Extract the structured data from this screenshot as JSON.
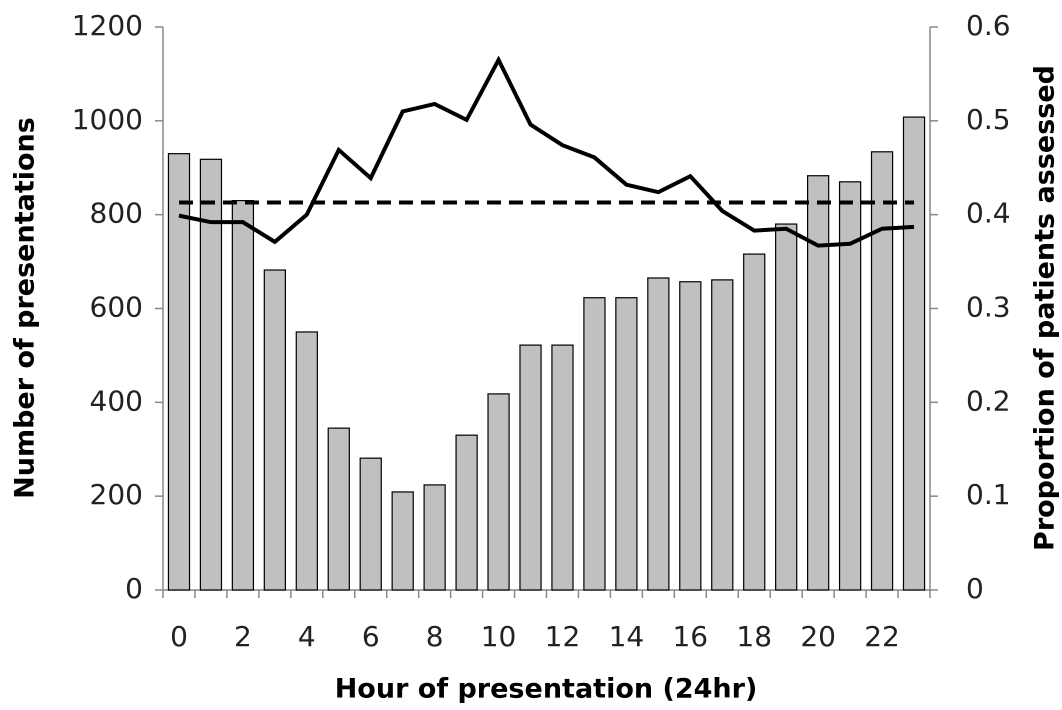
{
  "chart_data": {
    "type": "bar-line",
    "x_label": "Hour of presentation (24hr)",
    "y_label": "Number of presentations",
    "y2_label": "Proportion of patients assessed",
    "categories": [
      0,
      null,
      2,
      null,
      4,
      null,
      6,
      null,
      8,
      null,
      10,
      null,
      12,
      null,
      14,
      null,
      16,
      null,
      18,
      null,
      20,
      null,
      22,
      null
    ],
    "ylim": [
      0,
      1200
    ],
    "yticks": [
      0,
      200,
      400,
      600,
      800,
      1000,
      1200
    ],
    "y2lim": [
      0,
      0.6
    ],
    "y2ticks": [
      0,
      0.1,
      0.2,
      0.3,
      0.4,
      0.5,
      0.6
    ],
    "series": [
      {
        "type": "bar",
        "color": "#c0c0c0",
        "values": [
          930,
          918,
          830,
          682,
          550,
          345,
          281,
          209,
          224,
          330,
          418,
          522,
          522,
          623,
          623,
          665,
          657,
          661,
          716,
          780,
          883,
          870,
          934,
          1008
        ]
      },
      {
        "type": "line",
        "axis": "y2",
        "color": "#000000",
        "dash": false,
        "values": [
          0.399,
          0.392,
          0.392,
          0.371,
          0.4,
          0.469,
          0.439,
          0.51,
          0.518,
          0.501,
          0.565,
          0.496,
          0.474,
          0.461,
          0.432,
          0.424,
          0.441,
          0.404,
          0.383,
          0.385,
          0.367,
          0.369,
          0.385,
          0.387
        ]
      },
      {
        "type": "line",
        "axis": "y2",
        "color": "#000000",
        "dash": true,
        "values": [
          0.413,
          0.413,
          0.413,
          0.413,
          0.413,
          0.413,
          0.413,
          0.413,
          0.413,
          0.413,
          0.413,
          0.413,
          0.413,
          0.413,
          0.413,
          0.413,
          0.413,
          0.413,
          0.413,
          0.413,
          0.413,
          0.413,
          0.413,
          0.413
        ]
      }
    ]
  }
}
